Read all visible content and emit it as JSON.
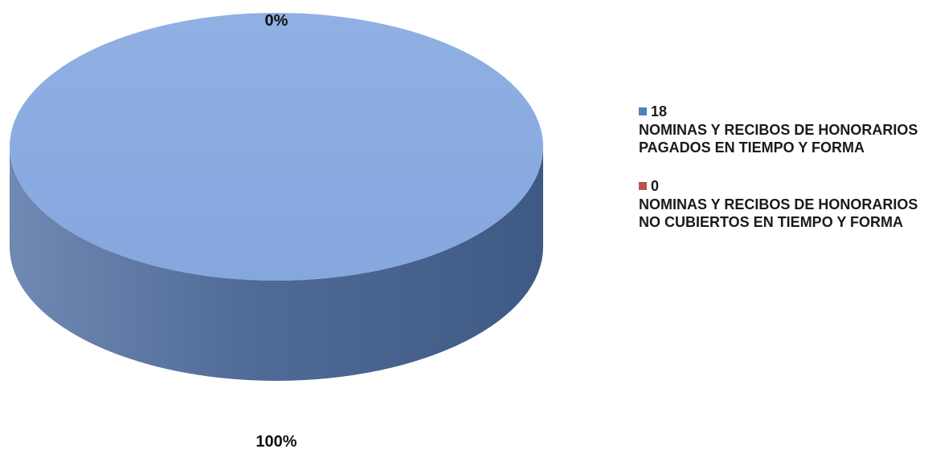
{
  "chart_data": {
    "type": "pie",
    "style": "3d",
    "slices": [
      {
        "value": 18,
        "label": "NOMINAS Y RECIBOS DE HONORARIOS PAGADOS EN TIEMPO Y FORMA",
        "percent_label": "100%",
        "color": "#8caee2"
      },
      {
        "value": 0,
        "label": "NOMINAS Y RECIBOS DE HONORARIOS NO CUBIERTOS EN TIEMPO Y FORMA",
        "percent_label": "0%",
        "color": "#c0504d"
      }
    ],
    "legend": {
      "position": "right",
      "items": [
        {
          "value": "18",
          "label": "NOMINAS Y RECIBOS DE HONORARIOS PAGADOS EN TIEMPO Y FORMA",
          "color": "#4f81bd"
        },
        {
          "value": "0",
          "label": "NOMINAS Y RECIBOS DE HONORARIOS NO CUBIERTOS EN TIEMPO Y FORMA",
          "color": "#c0504d"
        }
      ]
    },
    "colors": {
      "pie_top": "#8caee2",
      "pie_side": "#5a78a6"
    }
  }
}
